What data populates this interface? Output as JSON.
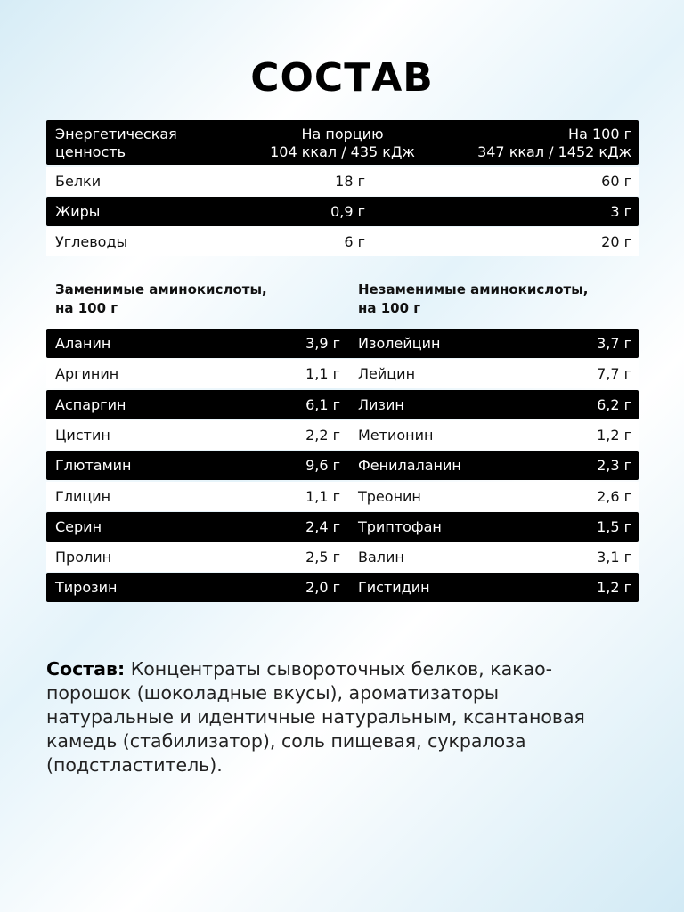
{
  "title": "СОСТАВ",
  "nutrition": {
    "header": [
      [
        "Энергетическая",
        "ценность"
      ],
      [
        "На порцию",
        "104 ккал / 435 кДж"
      ],
      [
        "На 100 г",
        "347 ккал / 1452 кДж"
      ]
    ],
    "rows": [
      [
        "Белки",
        "18 г",
        "60 г"
      ],
      [
        "Жиры",
        "0,9 г",
        "3 г"
      ],
      [
        "Углеводы",
        "6 г",
        "20 г"
      ]
    ]
  },
  "amino": {
    "left_title": [
      "Заменимые аминокислоты,",
      "на 100 г"
    ],
    "right_title": [
      "Незаменимые аминокислоты,",
      "на 100 г"
    ],
    "rows": [
      [
        "Аланин",
        "3,9 г",
        "Изолейцин",
        "3,7 г"
      ],
      [
        "Аргинин",
        "1,1 г",
        "Лейцин",
        "7,7 г"
      ],
      [
        "Аспаргин",
        "6,1 г",
        "Лизин",
        "6,2 г"
      ],
      [
        "Цистин",
        "2,2 г",
        "Метионин",
        "1,2 г"
      ],
      [
        "Глютамин",
        "9,6 г",
        "Фенилаланин",
        "2,3 г"
      ],
      [
        "Глицин",
        "1,1 г",
        "Треонин",
        "2,6 г"
      ],
      [
        "Серин",
        "2,4 г",
        "Триптофан",
        "1,5 г"
      ],
      [
        "Пролин",
        "2,5 г",
        "Валин",
        "3,1 г"
      ],
      [
        "Тирозин",
        "2,0 г",
        "Гистидин",
        "1,2 г"
      ]
    ]
  },
  "composition": {
    "label": "Состав:",
    "text": "Концентраты сывороточных белков, какао-порошок (шоколадные вкусы), ароматизаторы натуральные и идентичные натуральным, ксантановая камедь (стабилизатор), соль пищевая, сукралоза (подстластитель)."
  }
}
